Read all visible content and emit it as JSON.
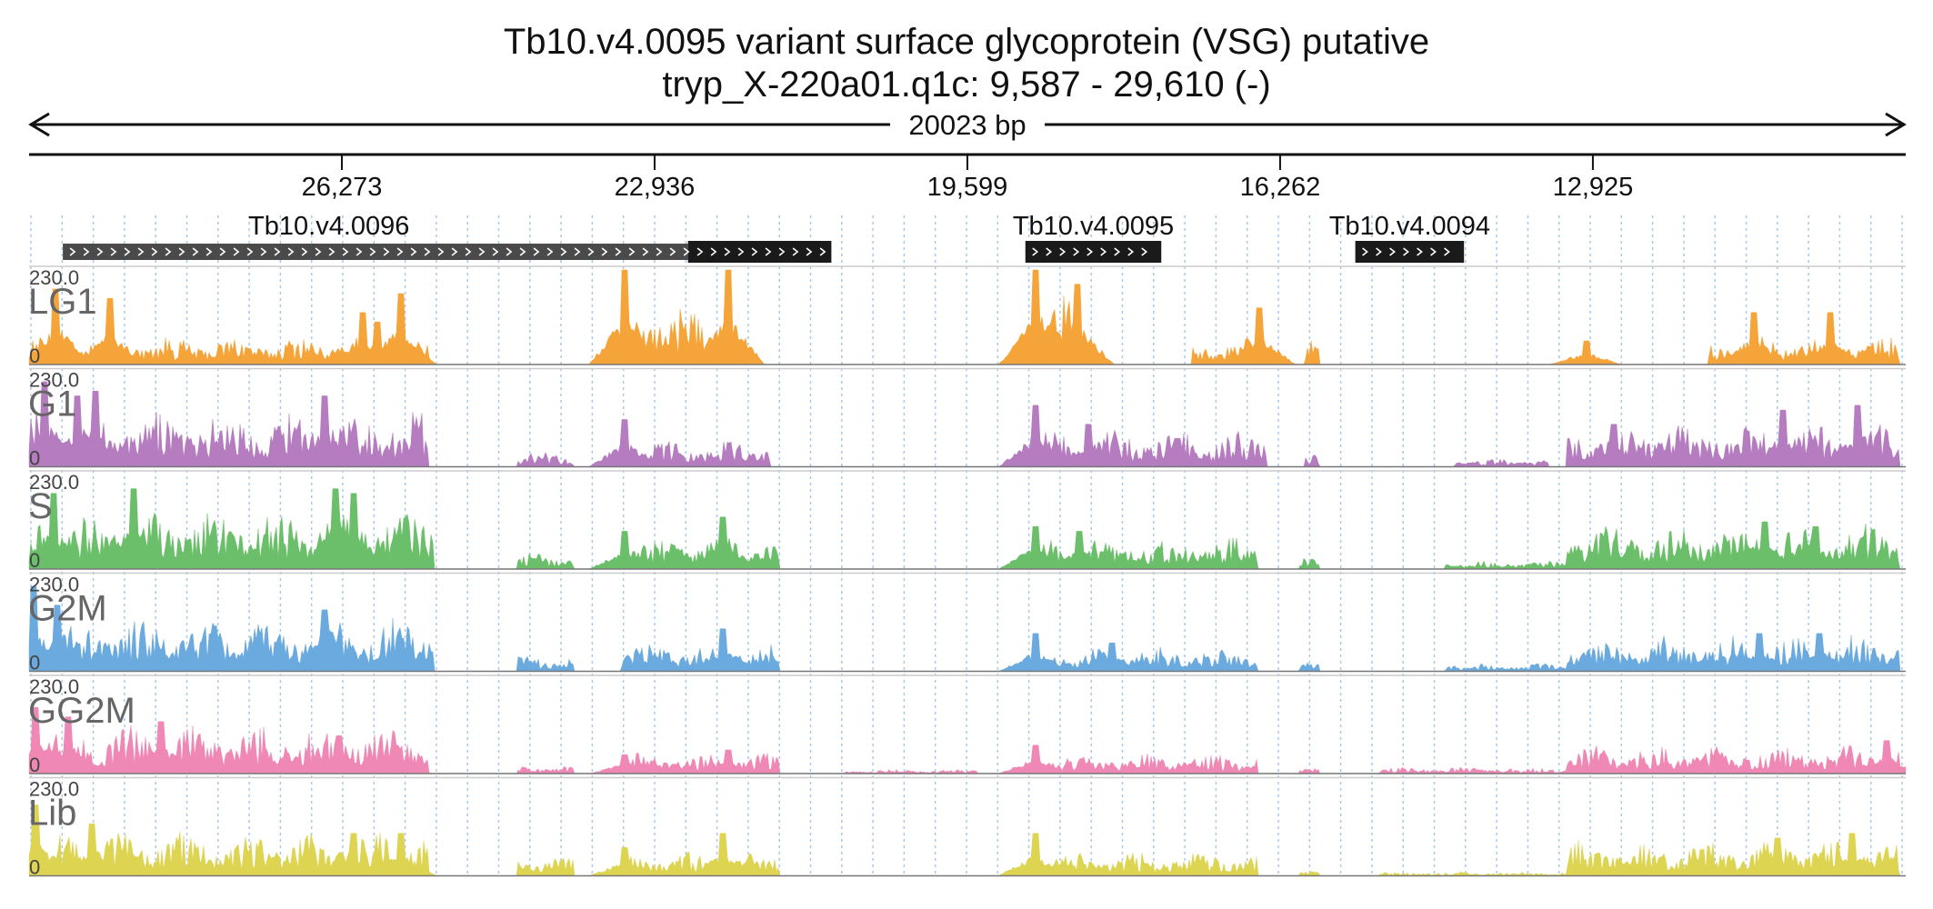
{
  "title": {
    "line1": "Tb10.v4.0095  variant surface glycoprotein (VSG)  putative",
    "line2": "tryp_X-220a01.q1c: 9,587 - 29,610 (-)"
  },
  "chart_data": {
    "type": "area",
    "region": {
      "chrom": "tryp_X-220a01.q1c",
      "start": 9587,
      "end": 29610,
      "strand": "-",
      "span_label": "20023 bp"
    },
    "ruler_ticks": [
      {
        "pos": 26273,
        "label": "26,273"
      },
      {
        "pos": 22936,
        "label": "22,936"
      },
      {
        "pos": 19599,
        "label": "19,599"
      },
      {
        "pos": 16262,
        "label": "16,262"
      },
      {
        "pos": 12925,
        "label": "12,925"
      }
    ],
    "genes": [
      {
        "name": "Tb10.v4.0096",
        "start": 29250,
        "end": 21050,
        "utr_end": 22580,
        "strand": "+"
      },
      {
        "name": "Tb10.v4.0095",
        "start": 18980,
        "end": 17530,
        "strand": "+"
      },
      {
        "name": "Tb10.v4.0094",
        "start": 15460,
        "end": 14300,
        "strand": "+"
      }
    ],
    "y_range": [
      0,
      230
    ],
    "y_max_label": "230.0",
    "y_min_label": "0",
    "tracks": [
      {
        "name": "LG1",
        "color": "#f5a43a",
        "segments": [
          [
            29600,
            25350,
            0.35
          ],
          [
            23300,
            22150,
            0.8
          ],
          [
            18900,
            18400,
            0.9
          ],
          [
            17200,
            16400,
            0.35
          ],
          [
            16000,
            15850,
            0.3
          ],
          [
            11700,
            9650,
            0.35
          ]
        ],
        "spikes": [
          [
            29320,
            0.8
          ],
          [
            28750,
            0.7
          ],
          [
            26050,
            0.55
          ],
          [
            25900,
            0.45
          ],
          [
            25650,
            0.75
          ],
          [
            23250,
            1.0
          ],
          [
            22150,
            1.0
          ],
          [
            18880,
            1.0
          ],
          [
            18420,
            0.85
          ],
          [
            16480,
            0.6
          ],
          [
            13000,
            0.25
          ],
          [
            11200,
            0.55
          ],
          [
            10400,
            0.55
          ]
        ]
      },
      {
        "name": "G1",
        "color": "#b57cbf",
        "segments": [
          [
            29600,
            25350,
            0.7
          ],
          [
            24400,
            23800,
            0.2
          ],
          [
            23300,
            21700,
            0.35
          ],
          [
            18900,
            16400,
            0.45
          ],
          [
            16000,
            15850,
            0.2
          ],
          [
            14400,
            13400,
            0.1
          ],
          [
            13200,
            9650,
            0.55
          ]
        ],
        "spikes": [
          [
            29450,
            0.9
          ],
          [
            29100,
            0.75
          ],
          [
            28900,
            0.8
          ],
          [
            26450,
            0.75
          ],
          [
            23250,
            0.5
          ],
          [
            18880,
            0.65
          ],
          [
            18300,
            0.45
          ],
          [
            17350,
            0.3
          ],
          [
            12700,
            0.45
          ],
          [
            10900,
            0.6
          ],
          [
            10100,
            0.65
          ]
        ]
      },
      {
        "name": "S",
        "color": "#6cbf6a",
        "segments": [
          [
            29600,
            25300,
            0.75
          ],
          [
            24400,
            23800,
            0.2
          ],
          [
            23300,
            21600,
            0.4
          ],
          [
            18900,
            16500,
            0.4
          ],
          [
            16050,
            15850,
            0.2
          ],
          [
            14500,
            13200,
            0.1
          ],
          [
            13200,
            9650,
            0.55
          ]
        ],
        "spikes": [
          [
            29350,
            0.8
          ],
          [
            28500,
            0.85
          ],
          [
            26350,
            0.85
          ],
          [
            26150,
            0.8
          ],
          [
            23250,
            0.4
          ],
          [
            22200,
            0.55
          ],
          [
            18880,
            0.45
          ],
          [
            18400,
            0.4
          ],
          [
            11100,
            0.5
          ],
          [
            10550,
            0.45
          ]
        ]
      },
      {
        "name": "G2M",
        "color": "#6aaade",
        "segments": [
          [
            29600,
            25300,
            0.65
          ],
          [
            24400,
            23800,
            0.2
          ],
          [
            23300,
            21600,
            0.35
          ],
          [
            18900,
            16500,
            0.3
          ],
          [
            16050,
            15850,
            0.2
          ],
          [
            14500,
            13200,
            0.1
          ],
          [
            13200,
            9650,
            0.45
          ]
        ],
        "spikes": [
          [
            29560,
            0.9
          ],
          [
            29300,
            0.7
          ],
          [
            26450,
            0.65
          ],
          [
            25650,
            0.35
          ],
          [
            22200,
            0.45
          ],
          [
            18880,
            0.4
          ],
          [
            18050,
            0.3
          ],
          [
            11150,
            0.4
          ],
          [
            10500,
            0.4
          ]
        ]
      },
      {
        "name": "GG2M",
        "color": "#ef88b4",
        "segments": [
          [
            29600,
            25350,
            0.6
          ],
          [
            24400,
            23800,
            0.1
          ],
          [
            23300,
            21600,
            0.25
          ],
          [
            20900,
            19500,
            0.05
          ],
          [
            18900,
            16500,
            0.25
          ],
          [
            16050,
            15850,
            0.1
          ],
          [
            15200,
            13100,
            0.08
          ],
          [
            13200,
            9650,
            0.35
          ]
        ],
        "spikes": [
          [
            29550,
            0.7
          ],
          [
            29200,
            0.6
          ],
          [
            28200,
            0.55
          ],
          [
            26300,
            0.4
          ],
          [
            25700,
            0.3
          ],
          [
            23250,
            0.2
          ],
          [
            22150,
            0.25
          ],
          [
            18880,
            0.3
          ],
          [
            9800,
            0.35
          ]
        ]
      },
      {
        "name": "Lib",
        "color": "#ddd452",
        "segments": [
          [
            29600,
            25350,
            0.55
          ],
          [
            24400,
            23800,
            0.25
          ],
          [
            23300,
            21600,
            0.3
          ],
          [
            18900,
            16500,
            0.3
          ],
          [
            16050,
            15850,
            0.1
          ],
          [
            15200,
            13100,
            0.05
          ],
          [
            13200,
            9650,
            0.45
          ]
        ],
        "spikes": [
          [
            29550,
            0.75
          ],
          [
            28950,
            0.55
          ],
          [
            26150,
            0.45
          ],
          [
            25650,
            0.45
          ],
          [
            23250,
            0.3
          ],
          [
            22200,
            0.45
          ],
          [
            18880,
            0.45
          ],
          [
            10950,
            0.4
          ],
          [
            10150,
            0.45
          ]
        ]
      }
    ]
  }
}
